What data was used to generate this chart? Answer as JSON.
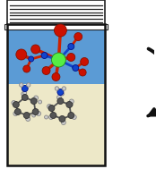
{
  "fig_width": 1.74,
  "fig_height": 1.89,
  "dpi": 100,
  "bg_color": "#ffffff",
  "book_color": "#ffffff",
  "book_line_color": "#222222",
  "container_border_color": "#111111",
  "top_bg_color": "#5B9BD5",
  "bottom_bg_color": "#EDE8C8",
  "arrow_color": "#111111",
  "green_center": "#55EE44",
  "green_center_edge": "#228822",
  "oxygen_color": "#CC1100",
  "oxygen_edge": "#881100",
  "nitrogen_color": "#1144CC",
  "nitrogen_edge": "#001188",
  "bond_color_o": "#CC2200",
  "bond_color_n": "#1144CC",
  "carbon_color": "#555555",
  "hydrogen_color": "#cccccc",
  "hydrogen_edge": "#888888"
}
